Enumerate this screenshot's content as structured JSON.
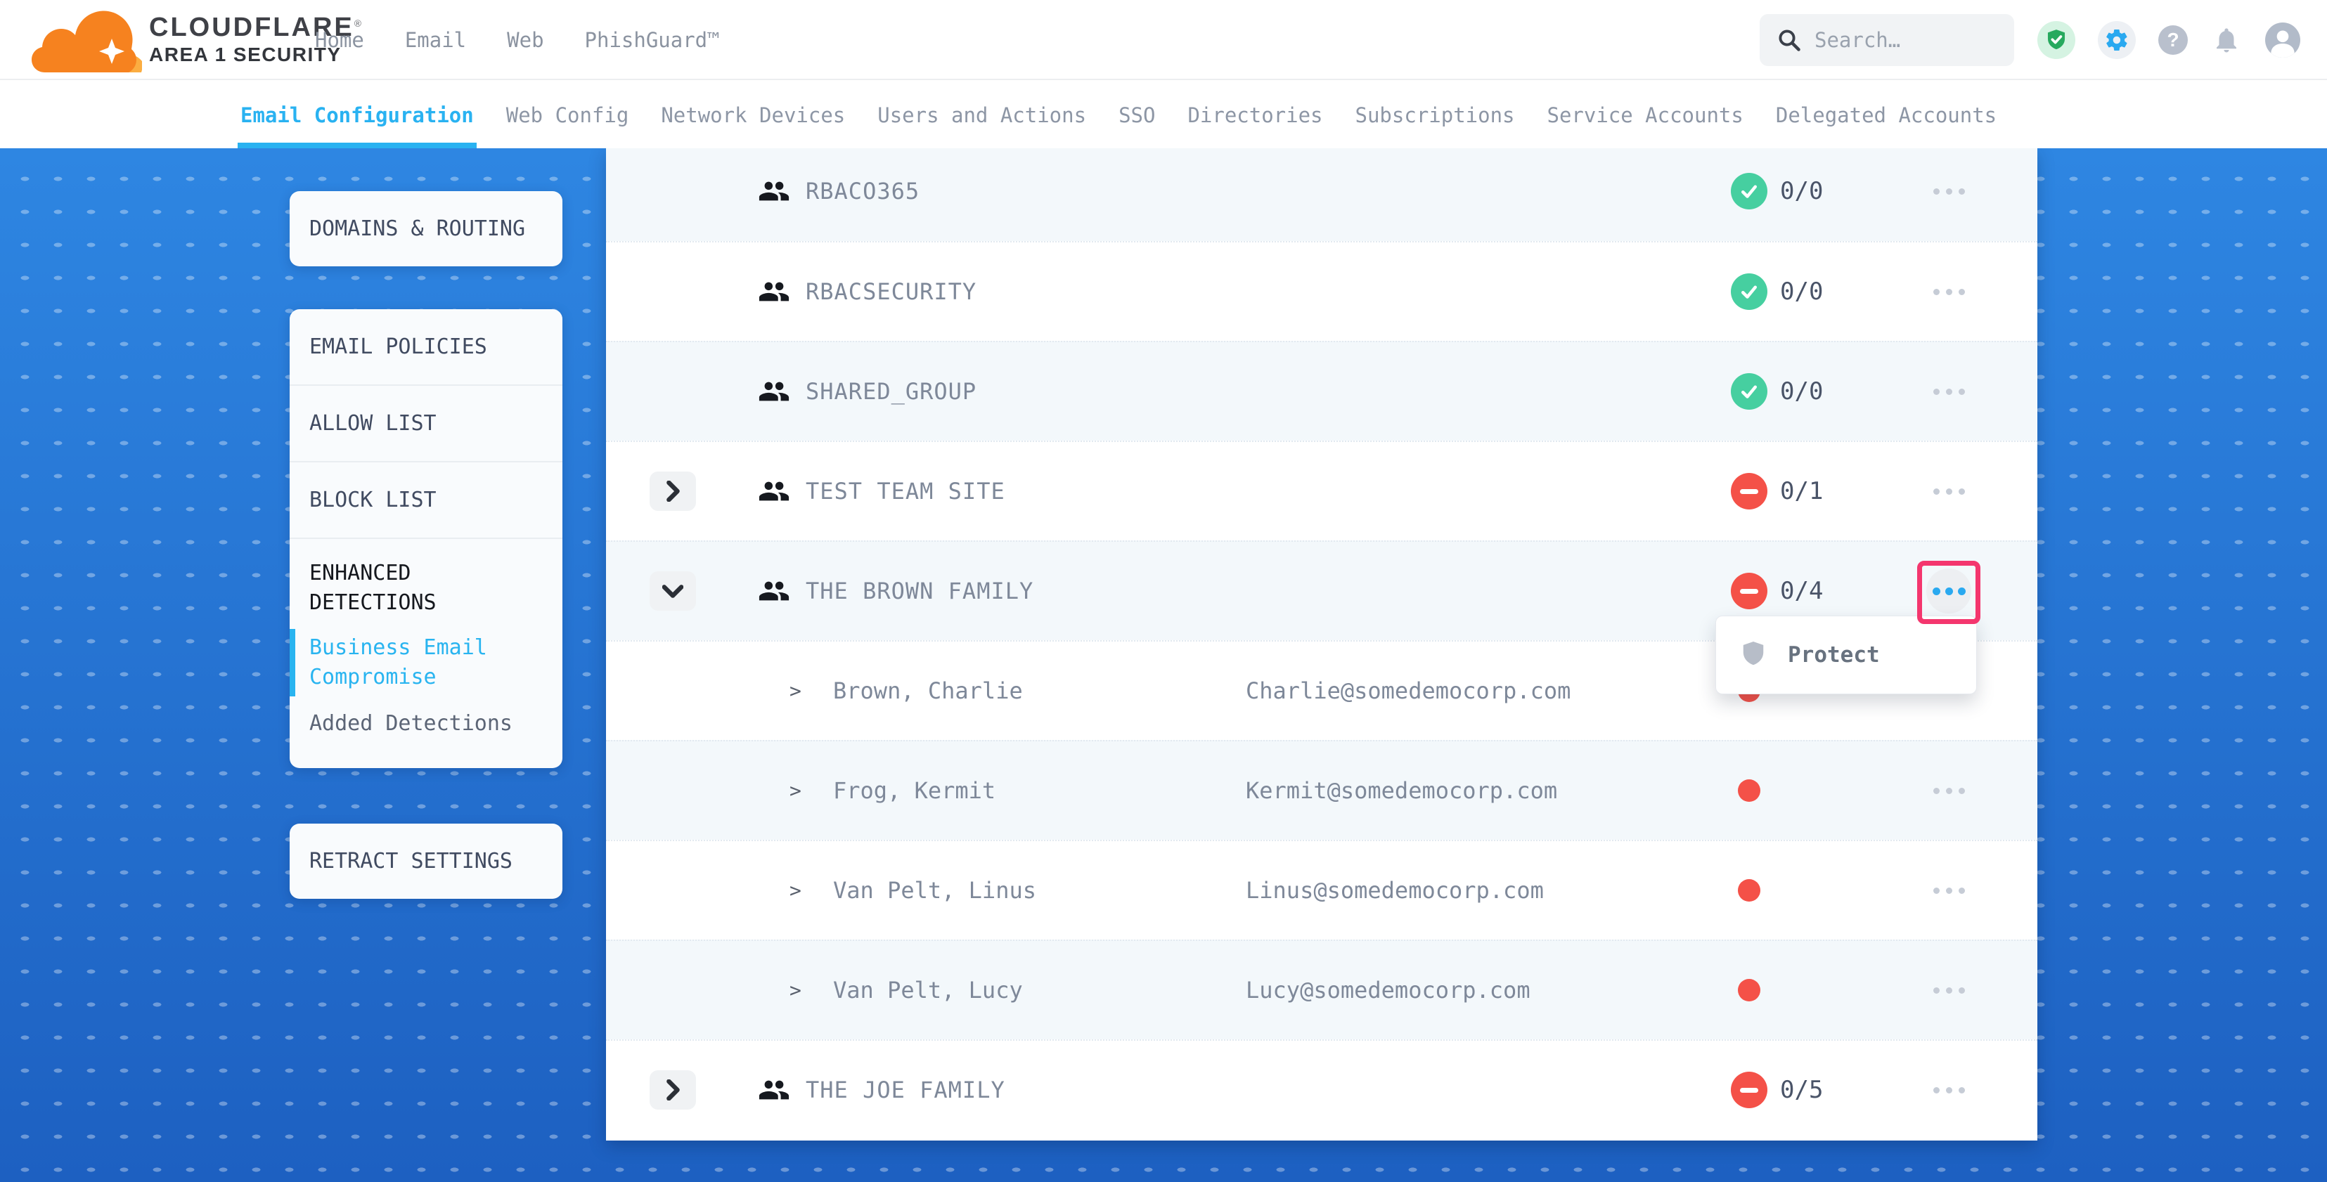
{
  "brand": {
    "line1": "CLOUDFLARE",
    "reg": "®",
    "line2": "AREA 1 SECURITY"
  },
  "topnav": {
    "items": [
      "Home",
      "Email",
      "Web",
      "PhishGuard™"
    ]
  },
  "search": {
    "placeholder": "Search…"
  },
  "header_icons": [
    "shield-check",
    "settings-gear",
    "help-question",
    "notifications-bell",
    "account-avatar"
  ],
  "tabs": {
    "items": [
      {
        "label": "Email Configuration",
        "active": true
      },
      {
        "label": "Web Config",
        "active": false
      },
      {
        "label": "Network Devices",
        "active": false
      },
      {
        "label": "Users and Actions",
        "active": false
      },
      {
        "label": "SSO",
        "active": false
      },
      {
        "label": "Directories",
        "active": false
      },
      {
        "label": "Subscriptions",
        "active": false
      },
      {
        "label": "Service Accounts",
        "active": false
      },
      {
        "label": "Delegated Accounts",
        "active": false
      }
    ]
  },
  "sidebar": {
    "cards": [
      {
        "items": [
          {
            "label": "DOMAINS & ROUTING"
          }
        ]
      },
      {
        "items": [
          {
            "label": "EMAIL POLICIES"
          },
          {
            "label": "ALLOW LIST"
          },
          {
            "label": "BLOCK LIST"
          },
          {
            "label": "ENHANCED DETECTIONS",
            "emphasis": true,
            "children": [
              {
                "label": "Business Email Compromise",
                "active": true
              },
              {
                "label": "Added Detections",
                "active": false
              }
            ]
          }
        ]
      },
      {
        "items": [
          {
            "label": "RETRACT SETTINGS"
          }
        ]
      }
    ]
  },
  "table": {
    "rows": [
      {
        "type": "group",
        "name": "RBACO365",
        "expand": null,
        "status": "ok",
        "count": "0/0",
        "shade": "light"
      },
      {
        "type": "group",
        "name": "RBACSECURITY",
        "expand": null,
        "status": "ok",
        "count": "0/0",
        "shade": "white"
      },
      {
        "type": "group",
        "name": "SHARED_GROUP",
        "expand": null,
        "status": "ok",
        "count": "0/0",
        "shade": "light"
      },
      {
        "type": "group",
        "name": "TEST TEAM SITE",
        "expand": "collapsed",
        "status": "blocked",
        "count": "0/1",
        "shade": "white"
      },
      {
        "type": "group",
        "name": "THE BROWN FAMILY",
        "expand": "expanded",
        "status": "blocked",
        "count": "0/4",
        "shade": "light",
        "menu_open": true
      },
      {
        "type": "member",
        "name": "Brown, Charlie",
        "email": "Charlie@somedemocorp.com",
        "shade": "white"
      },
      {
        "type": "member",
        "name": "Frog, Kermit",
        "email": "Kermit@somedemocorp.com",
        "shade": "light"
      },
      {
        "type": "member",
        "name": "Van Pelt, Linus",
        "email": "Linus@somedemocorp.com",
        "shade": "white"
      },
      {
        "type": "member",
        "name": "Van Pelt, Lucy",
        "email": "Lucy@somedemocorp.com",
        "shade": "light"
      },
      {
        "type": "group",
        "name": "THE JOE FAMILY",
        "expand": "collapsed",
        "status": "blocked",
        "count": "0/5",
        "shade": "white"
      }
    ]
  },
  "context_menu": {
    "items": [
      {
        "label": "Protect",
        "icon": "shield"
      }
    ]
  },
  "colors": {
    "accent_blue": "#2AA9F0",
    "brand_orange": "#F6821F",
    "brand_orange_light": "#FBAD41",
    "status_green": "#46CFA0",
    "status_red": "#F45148",
    "annotation_pink": "#F4366E",
    "bg_blue_top": "#2E86E2",
    "bg_blue_bottom": "#1D60C1"
  }
}
